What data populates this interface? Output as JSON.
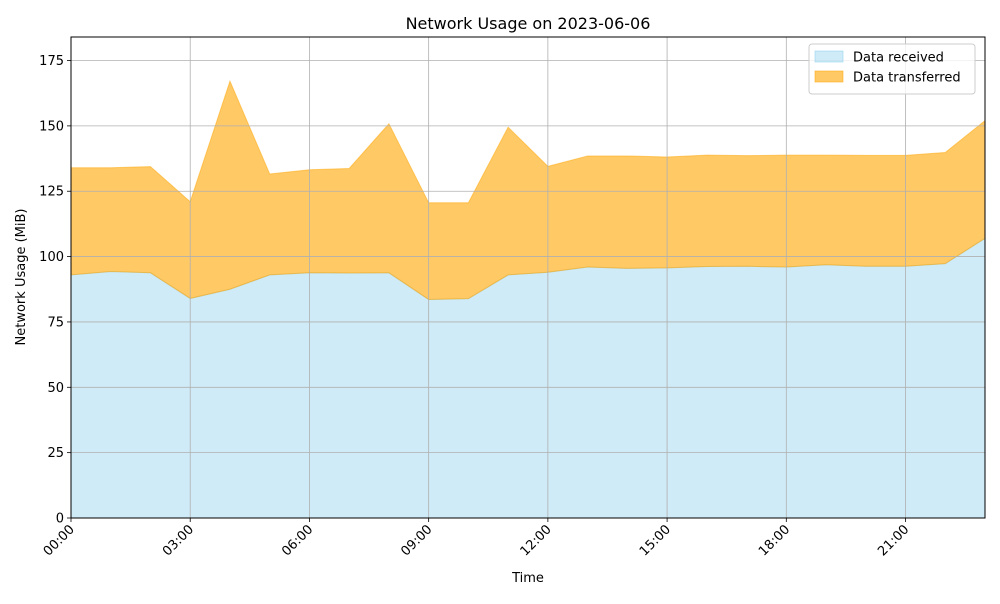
{
  "chart_data": {
    "type": "area",
    "stacked": true,
    "title": "Network Usage on 2023-06-06",
    "xlabel": "Time",
    "ylabel": "Network Usage (MiB)",
    "x": [
      "00:00",
      "01:00",
      "02:00",
      "03:00",
      "04:00",
      "05:00",
      "06:00",
      "07:00",
      "08:00",
      "09:00",
      "10:00",
      "11:00",
      "12:00",
      "13:00",
      "14:00",
      "15:00",
      "16:00",
      "17:00",
      "18:00",
      "19:00",
      "20:00",
      "21:00",
      "22:00",
      "23:00"
    ],
    "x_ticks": [
      "00:00",
      "03:00",
      "06:00",
      "09:00",
      "12:00",
      "15:00",
      "18:00",
      "21:00"
    ],
    "xlim": [
      "00:00",
      "23:00"
    ],
    "ylim": [
      0,
      184
    ],
    "y_ticks": [
      0,
      25,
      50,
      75,
      100,
      125,
      150,
      175
    ],
    "grid": true,
    "legend_position": "top-right",
    "series": [
      {
        "name": "Data received",
        "color": "#87ceeb",
        "values": [
          93.0,
          94.3,
          93.8,
          84.0,
          87.5,
          93.0,
          93.8,
          93.7,
          93.8,
          83.6,
          83.9,
          93.0,
          94.0,
          96.0,
          95.5,
          95.7,
          96.2,
          96.3,
          96.0,
          96.9,
          96.3,
          96.3,
          97.3,
          107.0
        ]
      },
      {
        "name": "Data transferred",
        "color": "#ffa500",
        "values": [
          41.0,
          39.7,
          40.6,
          37.0,
          79.6,
          38.6,
          39.4,
          40.0,
          57.0,
          37.0,
          36.7,
          56.5,
          40.5,
          42.5,
          43.0,
          42.4,
          42.6,
          42.3,
          42.8,
          41.9,
          42.4,
          42.4,
          42.5,
          45.0
        ]
      }
    ]
  }
}
